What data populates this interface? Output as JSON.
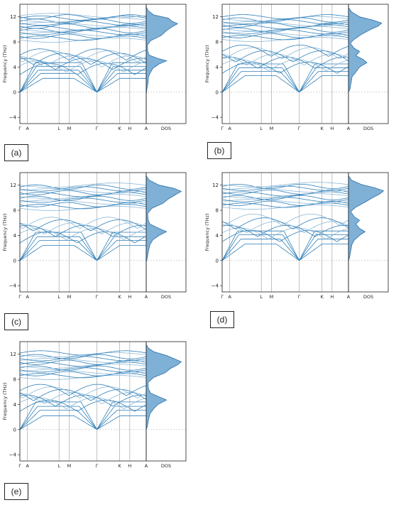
{
  "colors": {
    "band": "#2f7fb8",
    "band_light": "#8bb8d9",
    "dos_fill": "#7fb0d6",
    "dos_line": "#2a6fa8",
    "grid": "#9a9a9a",
    "zero_line": "#bbbbbb"
  },
  "chart_data": [
    {
      "id": "a",
      "label": "(a)",
      "type": "line",
      "title": "",
      "xlabel": "",
      "ylabel": "Frequency (THz)",
      "ylim": [
        -5,
        14
      ],
      "yticks": [
        -4,
        0,
        4,
        8,
        12
      ],
      "kpath": [
        "Γ",
        "A",
        "L",
        "M",
        "Γ",
        "K",
        "H",
        "A"
      ],
      "kpos": [
        0,
        0.06,
        0.31,
        0.39,
        0.61,
        0.79,
        0.87,
        1.0
      ],
      "dos_label": "DOS",
      "dos_profile": [
        [
          -0.4,
          0
        ],
        [
          0.6,
          0.02
        ],
        [
          1.5,
          0.05
        ],
        [
          2.4,
          0.06
        ],
        [
          3.0,
          0.1
        ],
        [
          3.8,
          0.18
        ],
        [
          4.5,
          0.35
        ],
        [
          5.0,
          0.55
        ],
        [
          5.4,
          0.3
        ],
        [
          5.9,
          0.08
        ],
        [
          6.5,
          0.04
        ],
        [
          7.5,
          0.03
        ],
        [
          8.2,
          0.12
        ],
        [
          9.0,
          0.4
        ],
        [
          9.8,
          0.55
        ],
        [
          10.4,
          0.7
        ],
        [
          10.9,
          0.85
        ],
        [
          11.3,
          0.7
        ],
        [
          11.8,
          0.6
        ],
        [
          12.3,
          0.2
        ],
        [
          13.0,
          0.05
        ],
        [
          13.6,
          0
        ]
      ],
      "optical_levels": [
        8.3,
        8.6,
        8.9,
        9.2,
        9.5,
        9.8,
        10.0,
        10.2,
        10.5,
        10.8,
        11.0,
        11.3,
        11.5,
        11.8,
        12.0,
        12.2
      ],
      "mid_levels": [
        4.0,
        4.4,
        4.8,
        5.2,
        5.6,
        6.0,
        6.3
      ],
      "low_levels": [
        1.0,
        1.5,
        2.0,
        2.6,
        3.2
      ]
    },
    {
      "id": "b",
      "label": "(b)",
      "type": "line",
      "title": "",
      "xlabel": "",
      "ylabel": "Frequency (THz)",
      "ylim": [
        -5,
        14
      ],
      "yticks": [
        -4,
        0,
        4,
        8,
        12
      ],
      "kpath": [
        "Γ",
        "A",
        "L",
        "M",
        "Γ",
        "K",
        "H",
        "A"
      ],
      "kpos": [
        0,
        0.06,
        0.31,
        0.39,
        0.61,
        0.79,
        0.87,
        1.0
      ],
      "dos_label": "DOS",
      "dos_profile": [
        [
          0,
          0
        ],
        [
          0.5,
          0.04
        ],
        [
          1.5,
          0.07
        ],
        [
          2.5,
          0.1
        ],
        [
          3.2,
          0.2
        ],
        [
          4.0,
          0.3
        ],
        [
          4.7,
          0.5
        ],
        [
          5.2,
          0.4
        ],
        [
          5.8,
          0.2
        ],
        [
          6.5,
          0.3
        ],
        [
          7.0,
          0.15
        ],
        [
          7.8,
          0.05
        ],
        [
          8.4,
          0.15
        ],
        [
          9.2,
          0.35
        ],
        [
          10.0,
          0.6
        ],
        [
          10.5,
          0.8
        ],
        [
          11.0,
          0.9
        ],
        [
          11.5,
          0.65
        ],
        [
          12.0,
          0.3
        ],
        [
          12.8,
          0.08
        ],
        [
          13.5,
          0
        ]
      ],
      "optical_levels": [
        8.4,
        8.7,
        9.0,
        9.3,
        9.6,
        9.9,
        10.1,
        10.4,
        10.7,
        10.9,
        11.2,
        11.5,
        11.7,
        12.0
      ],
      "mid_levels": [
        4.2,
        4.6,
        5.0,
        5.5,
        6.0,
        6.5,
        6.9
      ],
      "low_levels": [
        1.2,
        1.8,
        2.4,
        3.0
      ]
    },
    {
      "id": "c",
      "label": "(c)",
      "type": "line",
      "title": "",
      "xlabel": "",
      "ylabel": "Frequency (THz)",
      "ylim": [
        -5,
        14
      ],
      "yticks": [
        -4,
        0,
        4,
        8,
        12
      ],
      "kpath": [
        "Γ",
        "A",
        "L",
        "M",
        "Γ",
        "K",
        "H",
        "A"
      ],
      "kpos": [
        0,
        0.06,
        0.31,
        0.39,
        0.61,
        0.79,
        0.87,
        1.0
      ],
      "dos_label": "DOS",
      "dos_profile": [
        [
          -0.3,
          0
        ],
        [
          0.5,
          0.03
        ],
        [
          1.5,
          0.06
        ],
        [
          2.5,
          0.1
        ],
        [
          3.3,
          0.18
        ],
        [
          4.0,
          0.35
        ],
        [
          4.6,
          0.55
        ],
        [
          5.1,
          0.35
        ],
        [
          5.8,
          0.1
        ],
        [
          6.5,
          0.05
        ],
        [
          7.5,
          0.04
        ],
        [
          8.3,
          0.15
        ],
        [
          9.1,
          0.45
        ],
        [
          9.8,
          0.6
        ],
        [
          10.5,
          0.8
        ],
        [
          11.0,
          0.95
        ],
        [
          11.5,
          0.75
        ],
        [
          12.0,
          0.35
        ],
        [
          12.8,
          0.08
        ],
        [
          13.5,
          0
        ]
      ],
      "optical_levels": [
        8.3,
        8.6,
        8.9,
        9.3,
        9.6,
        9.9,
        10.2,
        10.5,
        10.8,
        11.1,
        11.4,
        11.7,
        12.0
      ],
      "mid_levels": [
        4.0,
        4.5,
        5.0,
        5.4,
        5.9,
        6.3
      ],
      "low_levels": [
        1.1,
        1.7,
        2.3,
        3.0
      ]
    },
    {
      "id": "d",
      "label": "(d)",
      "type": "line",
      "title": "",
      "xlabel": "",
      "ylabel": "Frequency (THz)",
      "ylim": [
        -5,
        14
      ],
      "yticks": [
        -4,
        0,
        4,
        8,
        12
      ],
      "kpath": [
        "Γ",
        "A",
        "L",
        "M",
        "Γ",
        "K",
        "H",
        "A"
      ],
      "kpos": [
        0,
        0.06,
        0.31,
        0.39,
        0.61,
        0.79,
        0.87,
        1.0
      ],
      "dos_label": "DOS",
      "dos_profile": [
        [
          0,
          0
        ],
        [
          0.5,
          0.03
        ],
        [
          1.5,
          0.06
        ],
        [
          2.5,
          0.09
        ],
        [
          3.2,
          0.15
        ],
        [
          4.0,
          0.3
        ],
        [
          4.6,
          0.45
        ],
        [
          5.1,
          0.3
        ],
        [
          5.8,
          0.2
        ],
        [
          6.4,
          0.3
        ],
        [
          7.0,
          0.15
        ],
        [
          7.8,
          0.06
        ],
        [
          8.5,
          0.2
        ],
        [
          9.3,
          0.45
        ],
        [
          10.0,
          0.65
        ],
        [
          10.6,
          0.85
        ],
        [
          11.1,
          0.95
        ],
        [
          11.6,
          0.7
        ],
        [
          12.1,
          0.35
        ],
        [
          12.8,
          0.08
        ],
        [
          13.5,
          0
        ]
      ],
      "optical_levels": [
        8.5,
        8.8,
        9.1,
        9.4,
        9.7,
        10.0,
        10.3,
        10.6,
        10.9,
        11.2,
        11.5,
        11.8,
        12.1
      ],
      "mid_levels": [
        4.2,
        4.6,
        5.0,
        5.6,
        6.2,
        6.8
      ],
      "low_levels": [
        1.2,
        1.9,
        2.6,
        3.2
      ]
    },
    {
      "id": "e",
      "label": "(e)",
      "type": "line",
      "title": "",
      "xlabel": "",
      "ylabel": "Frequency (THz)",
      "ylim": [
        -5,
        14
      ],
      "yticks": [
        -4,
        0,
        4,
        8,
        12
      ],
      "kpath": [
        "Γ",
        "A",
        "L",
        "M",
        "Γ",
        "K",
        "H",
        "A"
      ],
      "kpos": [
        0,
        0.06,
        0.31,
        0.39,
        0.61,
        0.79,
        0.87,
        1.0
      ],
      "dos_label": "DOS",
      "dos_profile": [
        [
          0,
          0
        ],
        [
          0.5,
          0.03
        ],
        [
          1.5,
          0.06
        ],
        [
          2.5,
          0.1
        ],
        [
          3.3,
          0.2
        ],
        [
          4.0,
          0.32
        ],
        [
          4.7,
          0.55
        ],
        [
          5.2,
          0.35
        ],
        [
          5.8,
          0.12
        ],
        [
          6.5,
          0.06
        ],
        [
          7.5,
          0.05
        ],
        [
          8.3,
          0.2
        ],
        [
          9.0,
          0.5
        ],
        [
          9.7,
          0.65
        ],
        [
          10.3,
          0.85
        ],
        [
          10.8,
          0.95
        ],
        [
          11.3,
          0.75
        ],
        [
          11.8,
          0.55
        ],
        [
          12.4,
          0.2
        ],
        [
          13.0,
          0.05
        ],
        [
          13.6,
          0
        ]
      ],
      "optical_levels": [
        8.3,
        8.6,
        8.9,
        9.2,
        9.5,
        9.8,
        10.1,
        10.4,
        10.7,
        11.0,
        11.3,
        11.6,
        11.9,
        12.2
      ],
      "mid_levels": [
        4.1,
        4.5,
        4.9,
        5.3,
        5.8,
        6.2,
        6.6
      ],
      "low_levels": [
        1.0,
        1.6,
        2.2,
        2.9
      ]
    }
  ]
}
